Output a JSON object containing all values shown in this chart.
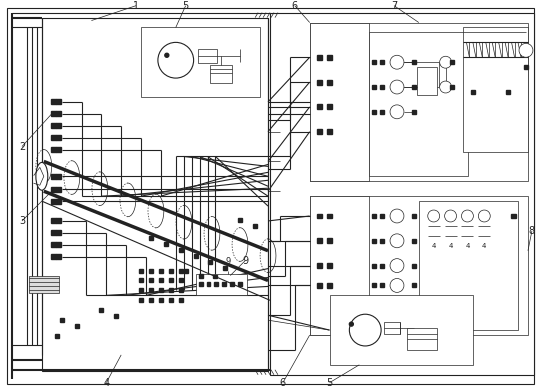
{
  "bg_color": "#ffffff",
  "lc": "#222222",
  "gray_fill": "#e8e8e8",
  "light_fill": "#f4f4f4",
  "figsize": [
    5.41,
    3.89
  ],
  "dpi": 100
}
